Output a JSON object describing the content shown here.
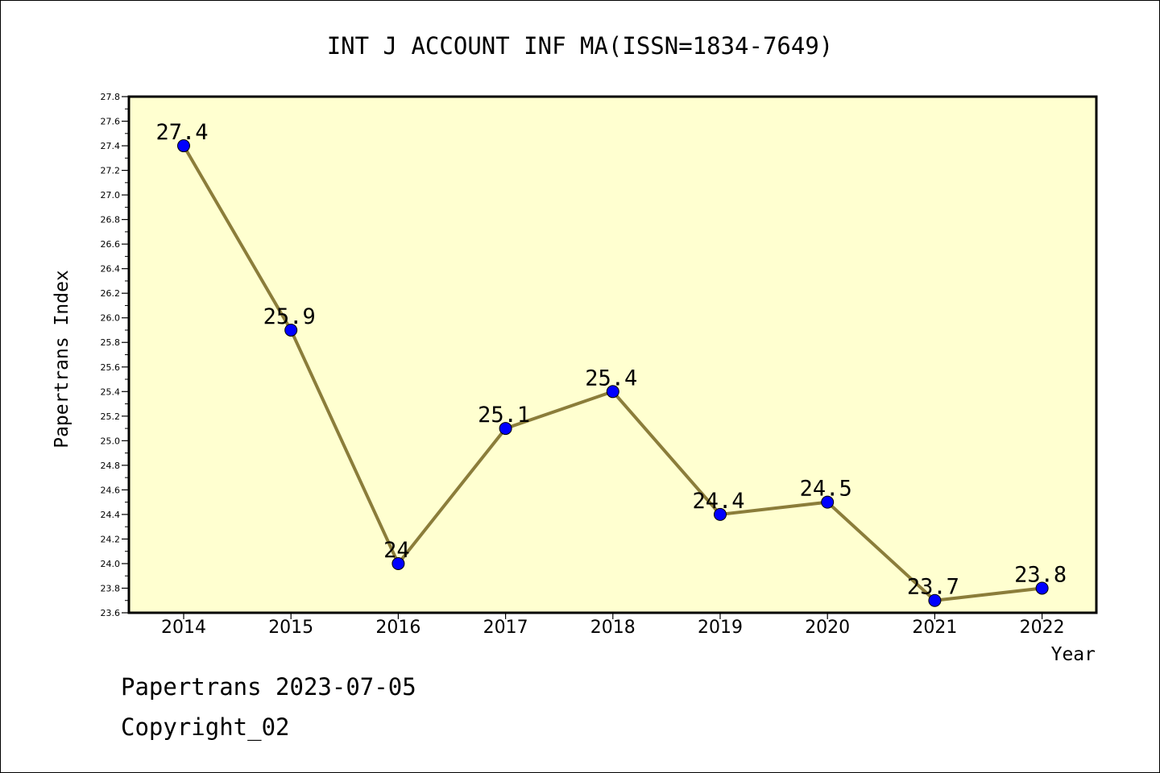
{
  "chart_data": {
    "type": "line",
    "title": "INT J ACCOUNT INF MA(ISSN=1834-7649)",
    "xlabel": "Year",
    "ylabel": "Papertrans Index",
    "categories": [
      "2014",
      "2015",
      "2016",
      "2017",
      "2018",
      "2019",
      "2020",
      "2021",
      "2022"
    ],
    "values": [
      27.4,
      25.9,
      24.0,
      25.1,
      25.4,
      24.4,
      24.5,
      23.7,
      23.8
    ],
    "data_labels": [
      "27.4",
      "25.9",
      "24",
      "25.1",
      "25.4",
      "24.4",
      "24.5",
      "23.7",
      "23.8"
    ],
    "ylim": [
      23.6,
      27.8
    ],
    "yticks": [
      "23.6",
      "23.8",
      "24.0",
      "24.2",
      "24.4",
      "24.6",
      "24.8",
      "25.0",
      "25.2",
      "25.4",
      "25.6",
      "25.8",
      "26.0",
      "26.2",
      "26.4",
      "26.6",
      "26.8",
      "27.0",
      "27.2",
      "27.4",
      "27.6",
      "27.8"
    ],
    "grid": false,
    "legend": "none",
    "colors": {
      "plot_background": "#ffffd0",
      "line": "#8b7d3a",
      "marker": "#0000ff"
    }
  },
  "footer": {
    "line1": "Papertrans 2023-07-05",
    "line2": "Copyright_02"
  }
}
